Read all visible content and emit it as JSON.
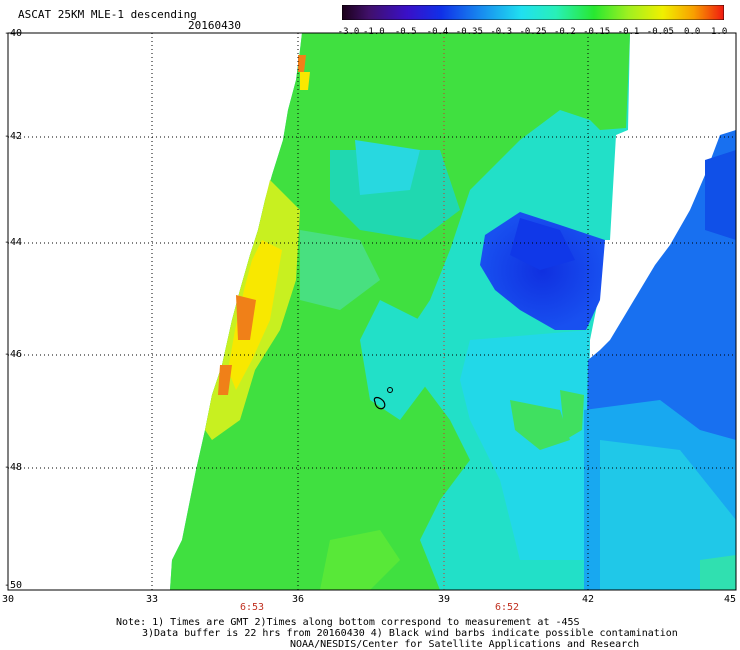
{
  "header": {
    "title": "ASCAT 25KM MLE-1 descending",
    "date": "20160430"
  },
  "colorbar": {
    "labels": [
      "-3.0",
      "-1.0",
      "-0.5",
      "-0.4",
      "-0.35",
      "-0.3",
      "-0.25",
      "-0.2",
      "-0.15",
      "-0.1",
      "-0.05",
      "0.0",
      "1.0"
    ],
    "colors": [
      "#2c0a30",
      "#5a10a0",
      "#2020d8",
      "#1c64f0",
      "#16a8f0",
      "#20e8e8",
      "#2cf0b0",
      "#24e838",
      "#70f020",
      "#c8f020",
      "#f8e800",
      "#f8a000",
      "#f02818"
    ]
  },
  "axes": {
    "lat_labels": [
      "-40",
      "-42",
      "-44",
      "-46",
      "-48",
      "-50"
    ],
    "lon_labels": [
      "30",
      "33",
      "36",
      "39",
      "42",
      "45"
    ],
    "time_labels": [
      "6:53",
      "6:52"
    ]
  },
  "notes": {
    "line1": "Note: 1) Times are GMT 2)Times along bottom correspond to measurement at -45S",
    "line2": "3)Data buffer is 22 hrs from 20160430 4) Black wind barbs indicate possible contamination",
    "line3": "NOAA/NESDIS/Center for Satellite Applications and Research"
  }
}
